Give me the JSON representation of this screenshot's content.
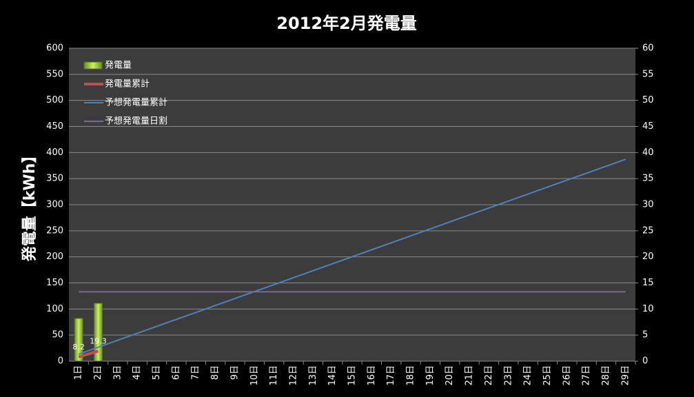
{
  "chart_data": {
    "type": "bar",
    "title": "2012年2月発電量",
    "y_label": "発電量【kWh】",
    "categories": [
      "1日",
      "2日",
      "3日",
      "4日",
      "5日",
      "6日",
      "7日",
      "8日",
      "9日",
      "10日",
      "11日",
      "12日",
      "13日",
      "14日",
      "15日",
      "16日",
      "17日",
      "18日",
      "19日",
      "20日",
      "21日",
      "22日",
      "23日",
      "24日",
      "25日",
      "26日",
      "27日",
      "28日",
      "29日"
    ],
    "ylim": [
      0,
      600
    ],
    "yticks": [
      0,
      50,
      100,
      150,
      200,
      250,
      300,
      350,
      400,
      450,
      500,
      550,
      600
    ],
    "y2lim": [
      0,
      60
    ],
    "y2ticks": [
      0,
      5,
      10,
      15,
      20,
      25,
      30,
      35,
      40,
      45,
      50,
      55,
      60
    ],
    "grid": true,
    "legend": "top-left",
    "series": [
      {
        "name": "発電量",
        "type": "bar",
        "axis": "y2",
        "color": "#9acd32",
        "values": [
          8.2,
          11.1,
          null,
          null,
          null,
          null,
          null,
          null,
          null,
          null,
          null,
          null,
          null,
          null,
          null,
          null,
          null,
          null,
          null,
          null,
          null,
          null,
          null,
          null,
          null,
          null,
          null,
          null,
          null
        ]
      },
      {
        "name": "発電量累計",
        "type": "line",
        "color": "#c0504d",
        "data_labels": true,
        "values": [
          8.2,
          19.3,
          null,
          null,
          null,
          null,
          null,
          null,
          null,
          null,
          null,
          null,
          null,
          null,
          null,
          null,
          null,
          null,
          null,
          null,
          null,
          null,
          null,
          null,
          null,
          null,
          null,
          null,
          null
        ]
      },
      {
        "name": "予想発電量累計",
        "type": "line",
        "color": "#4f81bd",
        "values": [
          13.35,
          26.7,
          40.05,
          53.4,
          66.75,
          80.1,
          93.45,
          106.8,
          120.15,
          133.5,
          146.85,
          160.2,
          173.55,
          186.9,
          200.25,
          213.6,
          226.95,
          240.3,
          253.65,
          267,
          280.35,
          293.7,
          307.05,
          320.4,
          333.75,
          347.1,
          360.45,
          373.8,
          387.15
        ]
      },
      {
        "name": "予想発電量日割",
        "type": "line",
        "axis": "y2",
        "color": "#8064a2",
        "values": [
          13.3,
          13.3,
          13.3,
          13.3,
          13.3,
          13.3,
          13.3,
          13.3,
          13.3,
          13.3,
          13.3,
          13.3,
          13.3,
          13.3,
          13.3,
          13.3,
          13.3,
          13.3,
          13.3,
          13.3,
          13.3,
          13.3,
          13.3,
          13.3,
          13.3,
          13.3,
          13.3,
          13.3,
          13.3
        ]
      }
    ]
  }
}
